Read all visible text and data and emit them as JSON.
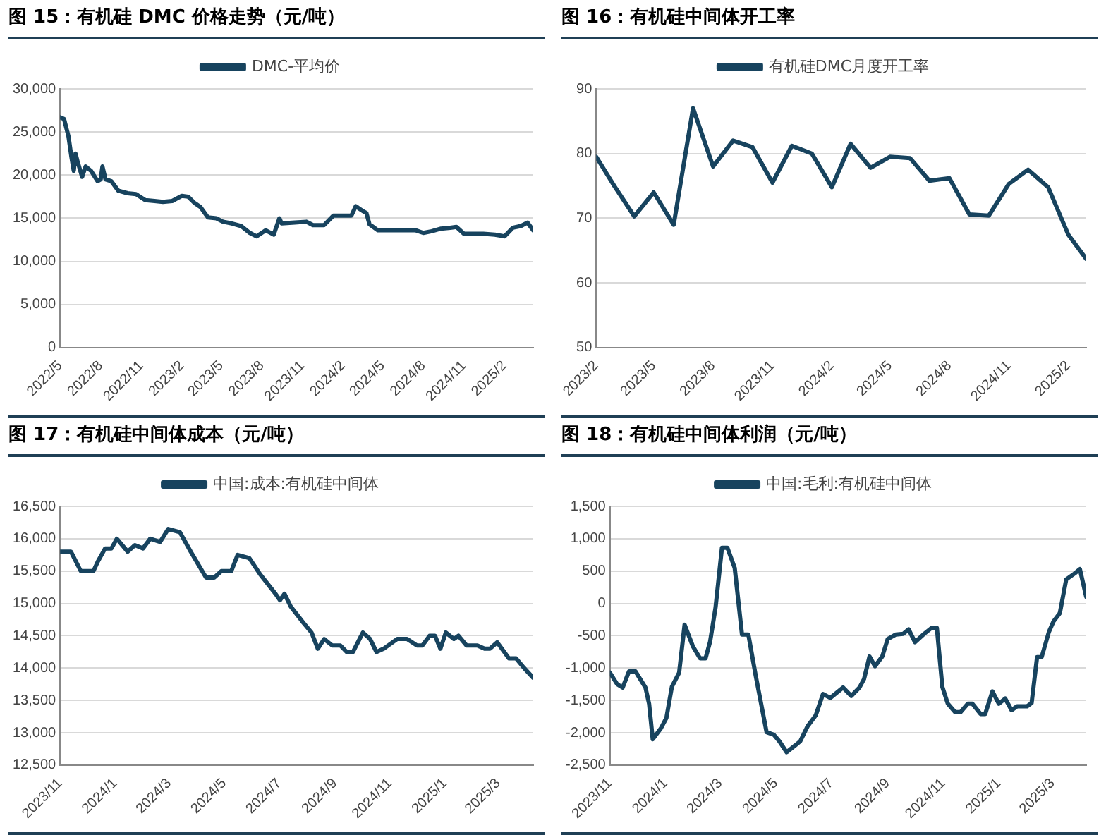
{
  "chart_data": [
    {
      "type": "line",
      "title": "图 15：有机硅 DMC 价格走势（元/吨）",
      "legend": "top",
      "grid": "y",
      "xlim": [
        "2022-05-01",
        "2025-04-07"
      ],
      "xticks": [
        {
          "value": "2022-05",
          "label": "2022/5"
        },
        {
          "value": "2022-08",
          "label": "2022/8"
        },
        {
          "value": "2022-11",
          "label": "2022/11"
        },
        {
          "value": "2023-02",
          "label": "2023/2"
        },
        {
          "value": "2023-05",
          "label": "2023/5"
        },
        {
          "value": "2023-08",
          "label": "2023/8"
        },
        {
          "value": "2023-11",
          "label": "2023/11"
        },
        {
          "value": "2024-02",
          "label": "2024/2"
        },
        {
          "value": "2024-05",
          "label": "2024/5"
        },
        {
          "value": "2024-08",
          "label": "2024/8"
        },
        {
          "value": "2024-11",
          "label": "2024/11"
        },
        {
          "value": "2025-02",
          "label": "2025/2"
        }
      ],
      "ylim": [
        0,
        30000
      ],
      "yticks": [
        0,
        {
          "value": 5000,
          "label": "5,000"
        },
        {
          "value": 10000,
          "label": "10,000"
        },
        {
          "value": 15000,
          "label": "15,000"
        },
        {
          "value": 20000,
          "label": "20,000"
        },
        {
          "value": 25000,
          "label": "25,000"
        },
        {
          "value": 30000,
          "label": "30,000"
        }
      ],
      "x": [
        "2022-05-01",
        "2022-05-10",
        "2022-05-20",
        "2022-05-27",
        "2022-06-01",
        "2022-06-05",
        "2022-06-10",
        "2022-06-20",
        "2022-06-28",
        "2022-07-10",
        "2022-07-25",
        "2022-08-01",
        "2022-08-05",
        "2022-08-12",
        "2022-08-25",
        "2022-09-10",
        "2022-10-01",
        "2022-10-20",
        "2022-11-10",
        "2022-12-01",
        "2022-12-20",
        "2023-01-10",
        "2023-02-01",
        "2023-02-15",
        "2023-03-01",
        "2023-03-15",
        "2023-04-01",
        "2023-04-20",
        "2023-05-05",
        "2023-05-25",
        "2023-06-15",
        "2023-07-05",
        "2023-07-20",
        "2023-08-10",
        "2023-08-28",
        "2023-09-10",
        "2023-09-15",
        "2023-10-15",
        "2023-11-10",
        "2023-11-25",
        "2023-12-20",
        "2024-01-10",
        "2024-02-20",
        "2024-03-01",
        "2024-03-15",
        "2024-03-25",
        "2024-04-01",
        "2024-04-20",
        "2024-06-15",
        "2024-07-15",
        "2024-08-01",
        "2024-08-20",
        "2024-09-10",
        "2024-10-01",
        "2024-10-15",
        "2024-11-01",
        "2024-12-15",
        "2025-01-10",
        "2025-02-01",
        "2025-02-20",
        "2025-03-10",
        "2025-03-25",
        "2025-04-07"
      ],
      "series": [
        {
          "name": "DMC-平均价",
          "color": "#17435e",
          "values": [
            26700,
            26500,
            24500,
            22000,
            20500,
            22500,
            21500,
            19800,
            21000,
            20500,
            19300,
            19500,
            21000,
            19500,
            19300,
            18200,
            17900,
            17800,
            17100,
            17000,
            16900,
            17000,
            17600,
            17500,
            16800,
            16300,
            15100,
            15000,
            14600,
            14400,
            14100,
            13300,
            12900,
            13600,
            13100,
            15000,
            14400,
            14500,
            14600,
            14200,
            14200,
            15300,
            15300,
            16400,
            15900,
            15600,
            14300,
            13600,
            13600,
            13600,
            13300,
            13500,
            13800,
            13900,
            14000,
            13200,
            13200,
            13100,
            12900,
            13900,
            14100,
            14500,
            13600
          ]
        }
      ]
    },
    {
      "type": "line",
      "title": "图 16：有机硅中间体开工率",
      "legend": "top",
      "grid": "y",
      "xlim": [
        "2023-02",
        "2025-03"
      ],
      "xticks": [
        {
          "value": "2023-02",
          "label": "2023/2"
        },
        {
          "value": "2023-05",
          "label": "2023/5"
        },
        {
          "value": "2023-08",
          "label": "2023/8"
        },
        {
          "value": "2023-11",
          "label": "2023/11"
        },
        {
          "value": "2024-02",
          "label": "2024/2"
        },
        {
          "value": "2024-05",
          "label": "2024/5"
        },
        {
          "value": "2024-08",
          "label": "2024/8"
        },
        {
          "value": "2024-11",
          "label": "2024/11"
        },
        {
          "value": "2025-02",
          "label": "2025/2"
        }
      ],
      "ylim": [
        50,
        90
      ],
      "yticks": [
        50,
        60,
        70,
        80,
        90
      ],
      "x": [
        "2023-02",
        "2023-03",
        "2023-04",
        "2023-05",
        "2023-06",
        "2023-07",
        "2023-08",
        "2023-09",
        "2023-10",
        "2023-11",
        "2023-12",
        "2024-01",
        "2024-02",
        "2024-03",
        "2024-04",
        "2024-05",
        "2024-06",
        "2024-07",
        "2024-08",
        "2024-09",
        "2024-10",
        "2024-11",
        "2024-12",
        "2025-01",
        "2025-02",
        "2025-03"
      ],
      "series": [
        {
          "name": "有机硅DMC月度开工率",
          "color": "#17435e",
          "values": [
            79.5,
            75,
            70.3,
            74,
            69,
            87,
            78,
            82,
            81,
            75.5,
            81.2,
            80,
            74.8,
            81.5,
            77.8,
            79.5,
            79.3,
            75.8,
            76.2,
            70.6,
            70.4,
            75.3,
            77.5,
            74.8,
            67.5,
            63.7
          ]
        }
      ]
    },
    {
      "type": "line",
      "title": "图 17：有机硅中间体成本（元/吨）",
      "legend": "top",
      "grid": "y",
      "xlim": [
        "2023-11-01",
        "2025-04-09"
      ],
      "xticks": [
        {
          "value": "2023-11",
          "label": "2023/11"
        },
        {
          "value": "2024-01",
          "label": "2024/1"
        },
        {
          "value": "2024-03",
          "label": "2024/3"
        },
        {
          "value": "2024-05",
          "label": "2024/5"
        },
        {
          "value": "2024-07",
          "label": "2024/7"
        },
        {
          "value": "2024-09",
          "label": "2024/9"
        },
        {
          "value": "2024-11",
          "label": "2024/11"
        },
        {
          "value": "2025-01",
          "label": "2025/1"
        },
        {
          "value": "2025-03",
          "label": "2025/3"
        }
      ],
      "ylim": [
        12500,
        16500
      ],
      "yticks": [
        {
          "value": 12500,
          "label": "12,500"
        },
        {
          "value": 13000,
          "label": "13,000"
        },
        {
          "value": 13500,
          "label": "13,500"
        },
        {
          "value": 14000,
          "label": "14,000"
        },
        {
          "value": 14500,
          "label": "14,500"
        },
        {
          "value": 15000,
          "label": "15,000"
        },
        {
          "value": 15500,
          "label": "15,500"
        },
        {
          "value": 16000,
          "label": "16,000"
        },
        {
          "value": 16500,
          "label": "16,500"
        }
      ],
      "x": [
        "2023-11-01",
        "2023-11-13",
        "2023-11-24",
        "2023-12-08",
        "2023-12-13",
        "2023-12-21",
        "2023-12-28",
        "2024-01-03",
        "2024-01-15",
        "2024-01-23",
        "2024-02-01",
        "2024-02-09",
        "2024-02-20",
        "2024-02-29",
        "2024-03-13",
        "2024-03-25",
        "2024-04-11",
        "2024-04-20",
        "2024-04-28",
        "2024-05-09",
        "2024-05-16",
        "2024-05-29",
        "2024-06-10",
        "2024-06-27",
        "2024-07-02",
        "2024-07-07",
        "2024-07-14",
        "2024-07-28",
        "2024-08-06",
        "2024-08-13",
        "2024-08-20",
        "2024-08-29",
        "2024-09-07",
        "2024-09-14",
        "2024-09-21",
        "2024-10-02",
        "2024-10-10",
        "2024-10-17",
        "2024-10-25",
        "2024-11-09",
        "2024-11-20",
        "2024-12-01",
        "2024-12-07",
        "2024-12-15",
        "2024-12-21",
        "2024-12-27",
        "2025-01-02",
        "2025-01-11",
        "2025-01-16",
        "2025-01-25",
        "2025-02-06",
        "2025-02-14",
        "2025-02-20",
        "2025-02-28",
        "2025-03-13",
        "2025-03-21",
        "2025-03-30",
        "2025-04-09"
      ],
      "series": [
        {
          "name": "中国:成本:有机硅中间体",
          "color": "#17435e",
          "values": [
            15800,
            15800,
            15500,
            15500,
            15650,
            15850,
            15850,
            16000,
            15800,
            15900,
            15850,
            16000,
            15950,
            16150,
            16100,
            15800,
            15400,
            15400,
            15500,
            15500,
            15750,
            15700,
            15450,
            15150,
            15050,
            15150,
            14950,
            14700,
            14550,
            14300,
            14450,
            14350,
            14350,
            14250,
            14250,
            14550,
            14450,
            14250,
            14300,
            14450,
            14450,
            14350,
            14350,
            14500,
            14500,
            14300,
            14550,
            14450,
            14500,
            14350,
            14350,
            14300,
            14300,
            14400,
            14150,
            14150,
            14000,
            13850
          ]
        }
      ]
    },
    {
      "type": "line",
      "title": "图 18：有机硅中间体利润（元/吨）",
      "legend": "top",
      "grid": "y",
      "xlim": [
        "2023-11-01",
        "2025-04-07"
      ],
      "xticks": [
        {
          "value": "2023-11",
          "label": "2023/11"
        },
        {
          "value": "2024-01",
          "label": "2024/1"
        },
        {
          "value": "2024-03",
          "label": "2024/3"
        },
        {
          "value": "2024-05",
          "label": "2024/5"
        },
        {
          "value": "2024-07",
          "label": "2024/7"
        },
        {
          "value": "2024-09",
          "label": "2024/9"
        },
        {
          "value": "2024-11",
          "label": "2024/11"
        },
        {
          "value": "2025-01",
          "label": "2025/1"
        },
        {
          "value": "2025-03",
          "label": "2025/3"
        }
      ],
      "ylim": [
        -2500,
        1500
      ],
      "yticks": [
        {
          "value": -2500,
          "label": "-2,500"
        },
        {
          "value": -2000,
          "label": "-2,000"
        },
        {
          "value": -1500,
          "label": "-1,500"
        },
        {
          "value": -1000,
          "label": "-1,000"
        },
        -500,
        0,
        500,
        {
          "value": 1000,
          "label": "1,000"
        },
        {
          "value": 1500,
          "label": "1,500"
        }
      ],
      "x": [
        "2023-11-01",
        "2023-11-09",
        "2023-11-15",
        "2023-11-22",
        "2023-11-29",
        "2023-12-10",
        "2023-12-14",
        "2023-12-18",
        "2023-12-27",
        "2024-01-02",
        "2024-01-08",
        "2024-01-16",
        "2024-01-22",
        "2024-01-31",
        "2024-02-08",
        "2024-02-14",
        "2024-02-19",
        "2024-02-25",
        "2024-03-03",
        "2024-03-09",
        "2024-03-17",
        "2024-03-25",
        "2024-04-01",
        "2024-04-09",
        "2024-04-21",
        "2024-04-29",
        "2024-05-05",
        "2024-05-13",
        "2024-05-22",
        "2024-05-28",
        "2024-06-05",
        "2024-06-14",
        "2024-06-22",
        "2024-06-30",
        "2024-07-14",
        "2024-07-23",
        "2024-08-01",
        "2024-08-06",
        "2024-08-12",
        "2024-08-18",
        "2024-08-26",
        "2024-09-01",
        "2024-09-10",
        "2024-09-18",
        "2024-09-24",
        "2024-10-01",
        "2024-10-11",
        "2024-10-19",
        "2024-10-25",
        "2024-10-31",
        "2024-11-06",
        "2024-11-14",
        "2024-11-20",
        "2024-11-28",
        "2024-12-03",
        "2024-12-12",
        "2024-12-17",
        "2024-12-25",
        "2025-01-01",
        "2025-01-08",
        "2025-01-15",
        "2025-01-21",
        "2025-02-01",
        "2025-02-06",
        "2025-02-12",
        "2025-02-17",
        "2025-02-25",
        "2025-03-02",
        "2025-03-09",
        "2025-03-16",
        "2025-03-25",
        "2025-03-31",
        "2025-04-07"
      ],
      "series": [
        {
          "name": "中国:毛利:有机硅中间体",
          "color": "#17435e",
          "values": [
            -1070,
            -1250,
            -1300,
            -1050,
            -1050,
            -1300,
            -1550,
            -2100,
            -1930,
            -1770,
            -1290,
            -1070,
            -330,
            -660,
            -850,
            -850,
            -590,
            -60,
            860,
            860,
            550,
            -480,
            -480,
            -1110,
            -1990,
            -2030,
            -2130,
            -2300,
            -2200,
            -2130,
            -1900,
            -1730,
            -1400,
            -1460,
            -1300,
            -1430,
            -1300,
            -1170,
            -820,
            -970,
            -820,
            -550,
            -480,
            -470,
            -400,
            -600,
            -470,
            -380,
            -380,
            -1290,
            -1550,
            -1680,
            -1680,
            -1550,
            -1550,
            -1710,
            -1710,
            -1360,
            -1550,
            -1470,
            -1650,
            -1590,
            -1590,
            -1540,
            -830,
            -830,
            -440,
            -280,
            -150,
            370,
            460,
            530,
            100
          ]
        }
      ]
    }
  ]
}
